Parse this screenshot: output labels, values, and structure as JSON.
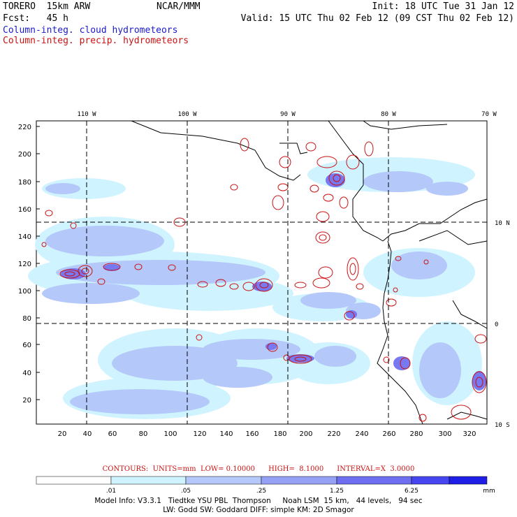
{
  "header": {
    "model": "TORERO  15km ARW",
    "org": "NCAR/MMM",
    "init": "Init: 18 UTC Tue 31 Jan 12",
    "forecast": "Fcst:   45 h",
    "valid": "Valid: 15 UTC Thu 02 Feb 12 (09 CST Thu 02 Feb 12)",
    "field_cloud": "Column-integ. cloud hydrometeors",
    "field_precip": "Column-integ. precip. hydrometeors"
  },
  "map": {
    "lon_labels": [
      "110 W",
      "100 W",
      "90 W",
      "80 W",
      "70 W"
    ],
    "lat_labels": [
      "10 N",
      "0",
      "10 S"
    ],
    "y_ticks": [
      "220",
      "200",
      "180",
      "160",
      "140",
      "120",
      "100",
      "80",
      "60",
      "40",
      "20"
    ],
    "x_ticks": [
      "20",
      "40",
      "60",
      "80",
      "100",
      "120",
      "140",
      "160",
      "180",
      "200",
      "220",
      "240",
      "260",
      "280",
      "300",
      "320"
    ]
  },
  "contour_info": "CONTOURS:  UNITS=mm  LOW= 0.10000      HIGH=  8.1000      INTERVAL=X  3.0000",
  "colorbar": {
    "labels": [
      ".01",
      ".05",
      ".25",
      "1.25",
      "6.25"
    ],
    "unit": "mm",
    "colors": [
      "#ffffff",
      "#d0f4ff",
      "#b4c8fa",
      "#96a0f5",
      "#6e6ef0",
      "#4646f0",
      "#1e1ee6"
    ]
  },
  "footer": {
    "line1": "Model Info: V3.3.1   Tiedtke YSU PBL  Thompson     Noah LSM  15 km,   44 levels,   94 sec",
    "line2": "LW: Godd SW: Goddard DIFF: simple KM: 2D Smagor"
  }
}
